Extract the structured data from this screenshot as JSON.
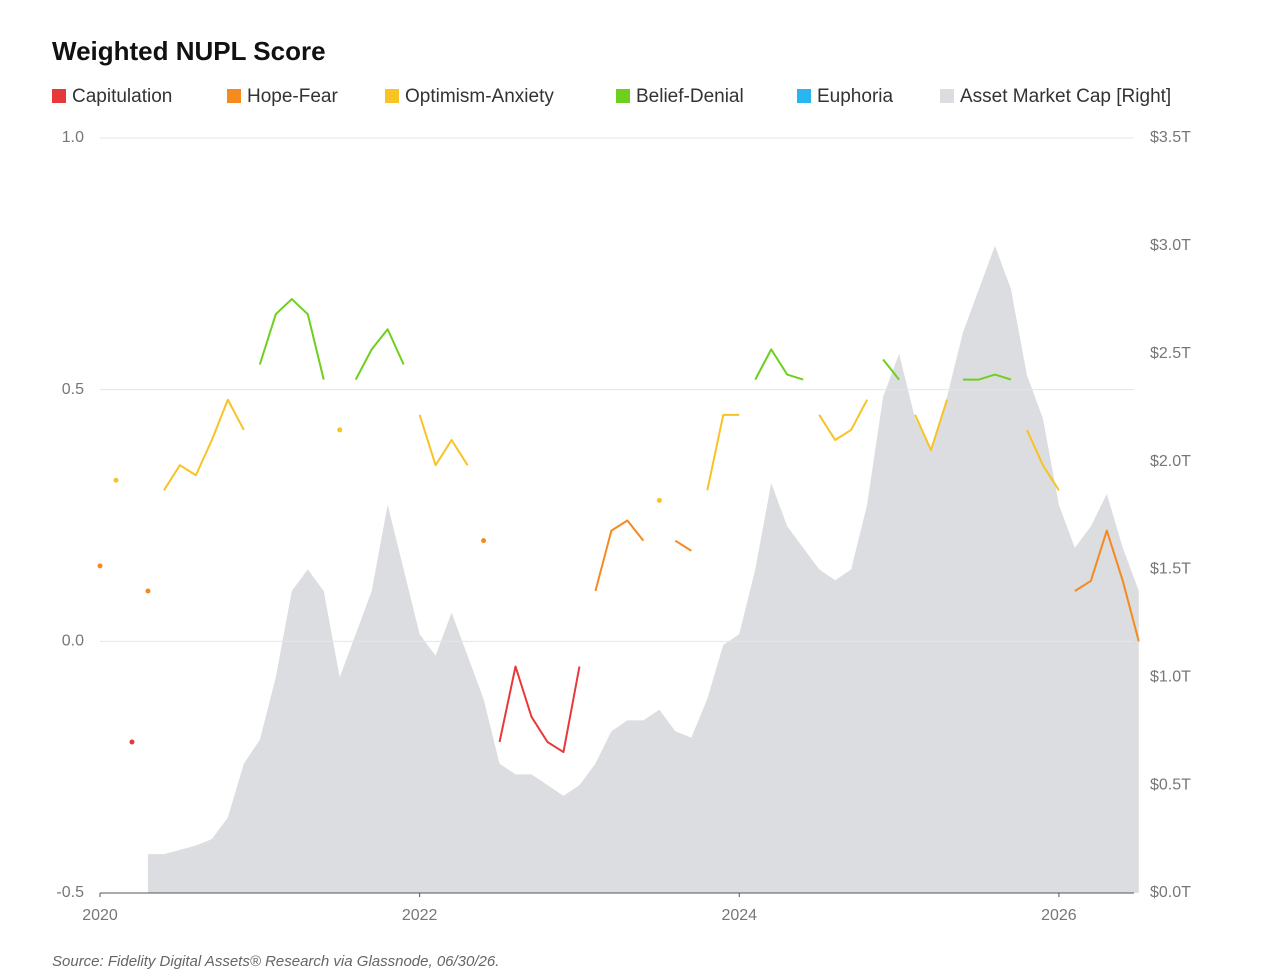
{
  "chart_data": {
    "type": "line",
    "title": "Weighted NUPL Score",
    "source": "Source: Fidelity Digital Assets® Research via Glassnode, 06/30/26.",
    "x": [
      2020,
      2020.1,
      2020.2,
      2020.3,
      2020.4,
      2020.5,
      2020.6,
      2020.7,
      2020.8,
      2020.9,
      2021,
      2021.1,
      2021.2,
      2021.3,
      2021.4,
      2021.5,
      2021.6,
      2021.7,
      2021.8,
      2021.9,
      2022,
      2022.1,
      2022.2,
      2022.3,
      2022.4,
      2022.5,
      2022.6,
      2022.7,
      2022.8,
      2022.9,
      2023,
      2023.1,
      2023.2,
      2023.3,
      2023.4,
      2023.5,
      2023.6,
      2023.7,
      2023.8,
      2023.9,
      2024,
      2024.1,
      2024.2,
      2024.3,
      2024.4,
      2024.5,
      2024.6,
      2024.7,
      2024.8,
      2024.9,
      2025,
      2025.1,
      2025.2,
      2025.3,
      2025.4,
      2025.5,
      2025.6,
      2025.7,
      2025.8,
      2025.9,
      2026,
      2026.1,
      2026.2,
      2026.3,
      2026.4,
      2026.5
    ],
    "xlim": [
      2020,
      2026.47
    ],
    "xticks": [
      2020,
      2022,
      2024,
      2026
    ],
    "ylim": [
      -0.5,
      1
    ],
    "yticks": [
      -0.5,
      {
        "value": 0,
        "label": "0.0"
      },
      0.5,
      {
        "value": 1,
        "label": "1.0"
      }
    ],
    "y2lim": [
      0,
      3.5
    ],
    "y2ticks": [
      {
        "value": 0,
        "label": "$0.0T"
      },
      {
        "value": 0.5,
        "label": "$0.5T"
      },
      {
        "value": 1,
        "label": "$1.0T"
      },
      {
        "value": 1.5,
        "label": "$1.5T"
      },
      {
        "value": 2,
        "label": "$2.0T"
      },
      {
        "value": 2.5,
        "label": "$2.5T"
      },
      {
        "value": 3,
        "label": "$3.0T"
      },
      {
        "value": 3.5,
        "label": "$3.5T"
      }
    ],
    "grid": true,
    "series": [
      {
        "name": "Capitulation",
        "color": "#e8393a",
        "values": [
          null,
          null,
          -0.2,
          null,
          null,
          null,
          null,
          null,
          null,
          null,
          null,
          null,
          null,
          null,
          null,
          null,
          null,
          null,
          null,
          null,
          null,
          null,
          null,
          null,
          null,
          -0.2,
          -0.05,
          -0.15,
          -0.2,
          -0.22,
          -0.05,
          null,
          null,
          null,
          null,
          null,
          null,
          null,
          null,
          null,
          null,
          null,
          null,
          null,
          null,
          null,
          null,
          null,
          null,
          null,
          null,
          null,
          null,
          null,
          null,
          null,
          null,
          null,
          null,
          null,
          null,
          null,
          null,
          null,
          null,
          null
        ]
      },
      {
        "name": "Hope-Fear",
        "color": "#f58a1f",
        "values": [
          0.15,
          null,
          null,
          0.1,
          null,
          null,
          null,
          null,
          null,
          null,
          null,
          null,
          null,
          null,
          null,
          null,
          null,
          null,
          null,
          null,
          null,
          null,
          null,
          null,
          0.2,
          null,
          null,
          null,
          null,
          null,
          null,
          0.1,
          0.22,
          0.24,
          0.2,
          null,
          0.2,
          0.18,
          null,
          null,
          null,
          null,
          null,
          null,
          null,
          null,
          null,
          null,
          null,
          null,
          null,
          null,
          null,
          null,
          null,
          null,
          null,
          null,
          null,
          null,
          null,
          0.1,
          0.12,
          0.22,
          0.12,
          0
        ]
      },
      {
        "name": "Optimism-Anxiety",
        "color": "#f7c325",
        "values": [
          null,
          0.32,
          null,
          null,
          0.3,
          0.35,
          0.33,
          0.4,
          0.48,
          0.42,
          null,
          null,
          null,
          null,
          null,
          0.42,
          null,
          null,
          null,
          null,
          0.45,
          0.35,
          0.4,
          0.35,
          null,
          null,
          null,
          null,
          null,
          null,
          null,
          null,
          null,
          null,
          null,
          0.28,
          null,
          null,
          0.3,
          0.45,
          0.45,
          null,
          null,
          null,
          null,
          0.45,
          0.4,
          0.42,
          0.48,
          null,
          null,
          0.45,
          0.38,
          0.48,
          null,
          null,
          null,
          null,
          0.42,
          0.35,
          0.3,
          null,
          null,
          null,
          null,
          null
        ]
      },
      {
        "name": "Belief-Denial",
        "color": "#6fcf1f",
        "values": [
          null,
          null,
          null,
          null,
          null,
          null,
          null,
          null,
          null,
          null,
          0.55,
          0.65,
          0.68,
          0.65,
          0.52,
          null,
          0.52,
          0.58,
          0.62,
          0.55,
          null,
          null,
          null,
          null,
          null,
          null,
          null,
          null,
          null,
          null,
          null,
          null,
          null,
          null,
          null,
          null,
          null,
          null,
          null,
          null,
          null,
          0.52,
          0.58,
          0.53,
          0.52,
          null,
          null,
          null,
          null,
          0.56,
          0.52,
          null,
          null,
          null,
          0.52,
          0.52,
          0.53,
          0.52,
          null,
          null,
          null,
          null,
          null,
          null,
          null,
          null
        ]
      },
      {
        "name": "Euphoria",
        "color": "#29b6f0",
        "values": [
          null,
          null,
          null,
          null,
          null,
          null,
          null,
          null,
          null,
          null,
          null,
          null,
          null,
          null,
          null,
          null,
          null,
          null,
          null,
          null,
          null,
          null,
          null,
          null,
          null,
          null,
          null,
          null,
          null,
          null,
          null,
          null,
          null,
          null,
          null,
          null,
          null,
          null,
          null,
          null,
          null,
          null,
          null,
          null,
          null,
          null,
          null,
          null,
          null,
          null,
          null,
          null,
          null,
          null,
          null,
          null,
          null,
          null,
          null,
          null,
          null,
          null,
          null,
          null,
          null,
          null
        ]
      },
      {
        "name": "Asset Market Cap [Right]",
        "color": "#dcdde0",
        "axis": "y2",
        "type": "area",
        "values": [
          null,
          null,
          null,
          0.18,
          0.18,
          0.2,
          0.22,
          0.25,
          0.35,
          0.6,
          0.71,
          1.0,
          1.4,
          1.5,
          1.4,
          1.0,
          1.2,
          1.4,
          1.8,
          1.5,
          1.2,
          1.1,
          1.3,
          1.1,
          0.9,
          0.6,
          0.55,
          0.55,
          0.5,
          0.45,
          0.5,
          0.6,
          0.75,
          0.8,
          0.8,
          0.85,
          0.75,
          0.72,
          0.9,
          1.15,
          1.2,
          1.5,
          1.9,
          1.7,
          1.6,
          1.5,
          1.45,
          1.5,
          1.8,
          2.3,
          2.5,
          2.2,
          2.05,
          2.3,
          2.6,
          2.8,
          3.0,
          2.8,
          2.4,
          2.2,
          1.8,
          1.6,
          1.7,
          1.85,
          1.6,
          1.4
        ]
      }
    ]
  }
}
